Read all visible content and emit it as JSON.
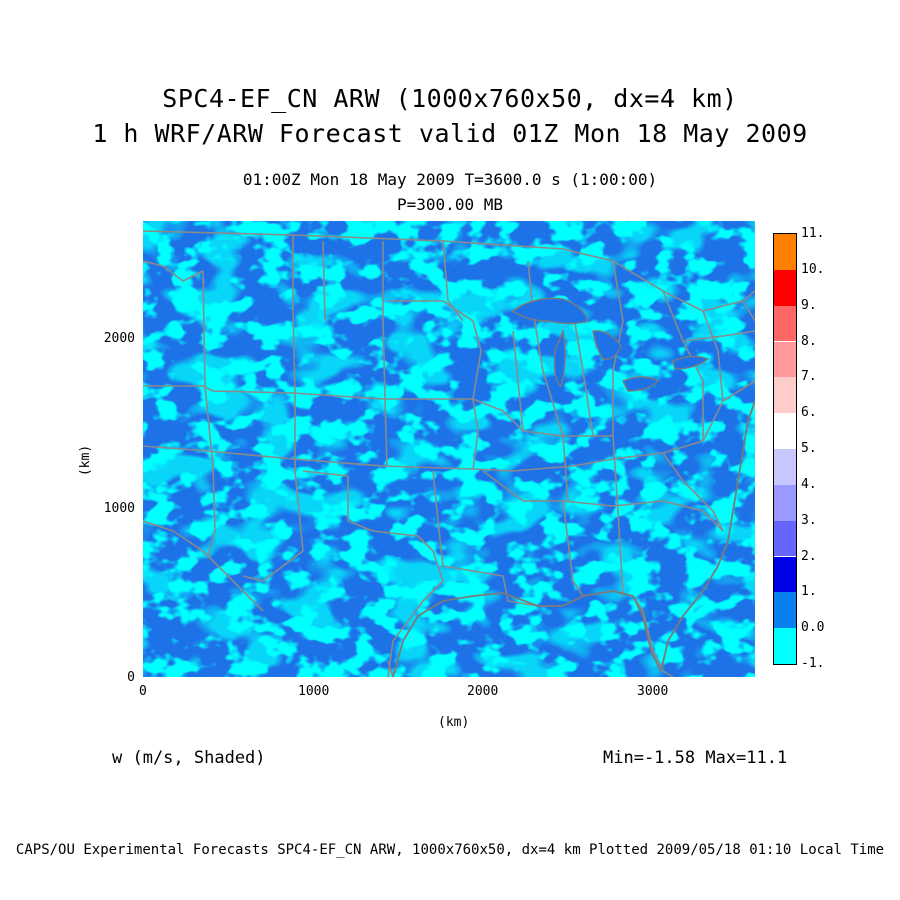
{
  "title": {
    "line1": "SPC4-EF_CN ARW (1000x760x50, dx=4 km)",
    "line2": "1 h WRF/ARW Forecast valid 01Z Mon 18 May 2009"
  },
  "subtitle": {
    "time": "01:00Z Mon 18 May 2009    T=3600.0 s (1:00:00)",
    "level": "P=300.00 MB"
  },
  "axes": {
    "xlabel": "(km)",
    "ylabel": "(km)",
    "xticks": [
      "0",
      "1000",
      "2000",
      "3000"
    ],
    "yticks": [
      "0",
      "1000",
      "2000"
    ]
  },
  "variable_label": "w (m/s, Shaded)",
  "minmax": "Min=-1.58 Max=11.1",
  "footer": "CAPS/OU Experimental Forecasts  SPC4-EF_CN ARW, 1000x760x50, dx=4 km  Plotted 2009/05/18 01:10 Local Time",
  "colorbar": {
    "labels": [
      "-1.",
      "0.0",
      "1.",
      "2.",
      "3.",
      "4.",
      "5.",
      "6.",
      "7.",
      "8.",
      "9.",
      "10.",
      "11."
    ],
    "colors": [
      "#00ffff",
      "#0a7ff0",
      "#0000e6",
      "#6666ff",
      "#9999ff",
      "#c8c8ff",
      "#ffffff",
      "#ffcccc",
      "#ff9999",
      "#ff6666",
      "#ff0000",
      "#ff8000"
    ]
  },
  "map_colors": {
    "background": "#1e90ff",
    "light": "#00ffff",
    "dark": "#1e6ee6",
    "boundary": "#8a8a8a"
  }
}
